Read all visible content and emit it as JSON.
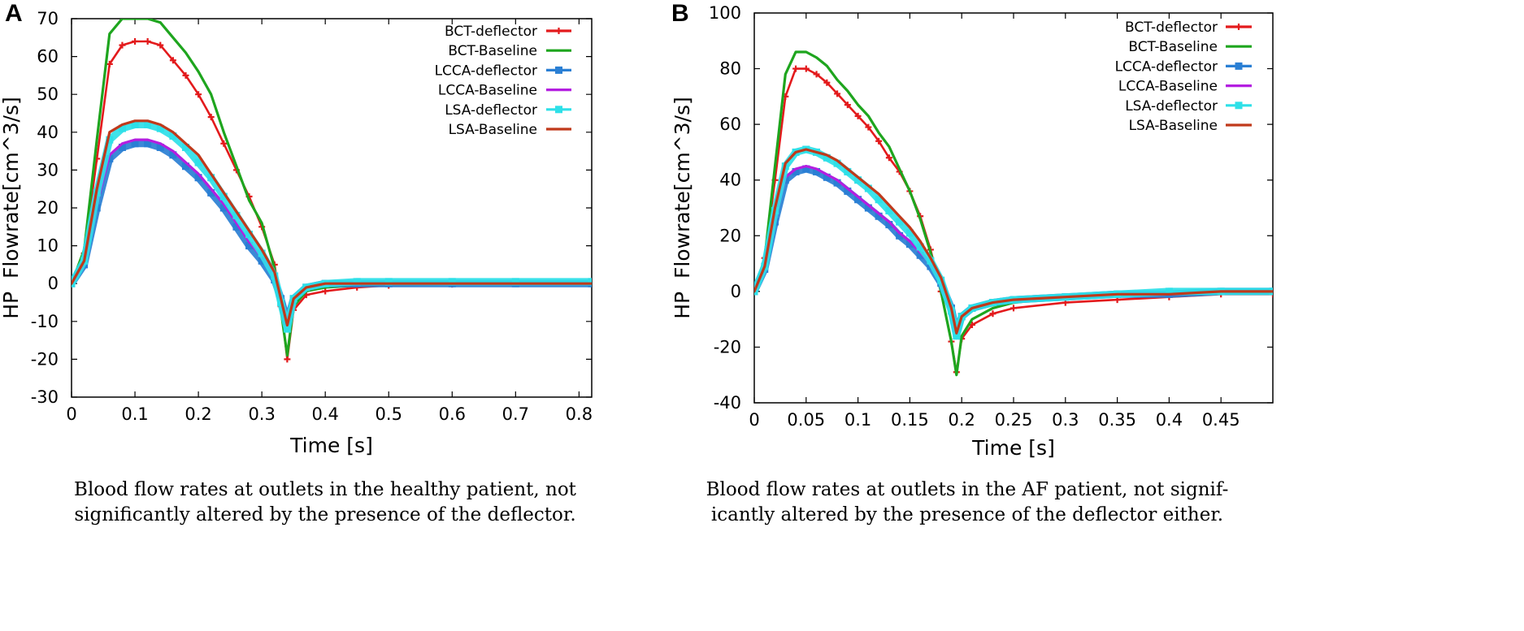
{
  "chart_data": [
    {
      "type": "line",
      "panel": "A",
      "title": "",
      "xlabel": "Time [s]",
      "ylabel": "HP  Flowrate[cm^3/s]",
      "xlim": [
        0,
        0.82
      ],
      "ylim": [
        -30,
        70
      ],
      "xticks": [
        0,
        0.1,
        0.2,
        0.3,
        0.4,
        0.5,
        0.6,
        0.7,
        0.8
      ],
      "xtick_labels": [
        "0",
        "0.1",
        "0.2",
        "0.3",
        "0.4",
        "0.5",
        "0.6",
        "0.7",
        "0.8"
      ],
      "yticks": [
        -30,
        -20,
        -10,
        0,
        10,
        20,
        30,
        40,
        50,
        60,
        70
      ],
      "ytick_labels": [
        "-30",
        "-20",
        "-10",
        "0",
        "10",
        "20",
        "30",
        "40",
        "50",
        "60",
        "70"
      ],
      "legend_position": "top-right",
      "series": [
        {
          "name": "BCT-deflector",
          "color": "#e31a1c",
          "marker": "plus",
          "x": [
            0,
            0.02,
            0.04,
            0.06,
            0.08,
            0.1,
            0.12,
            0.14,
            0.16,
            0.18,
            0.2,
            0.22,
            0.24,
            0.26,
            0.28,
            0.3,
            0.32,
            0.33,
            0.34,
            0.35,
            0.37,
            0.4,
            0.45,
            0.5,
            0.6,
            0.7,
            0.82
          ],
          "y": [
            0,
            8,
            33,
            58,
            63,
            64,
            64,
            63,
            59,
            55,
            50,
            44,
            37,
            30,
            23,
            15,
            5,
            -6,
            -20,
            -7,
            -3,
            -2,
            -1,
            -0.5,
            -0.2,
            0,
            0
          ]
        },
        {
          "name": "BCT-Baseline",
          "color": "#1ea51e",
          "marker": "none",
          "x": [
            0,
            0.02,
            0.04,
            0.06,
            0.08,
            0.1,
            0.12,
            0.14,
            0.16,
            0.18,
            0.2,
            0.22,
            0.24,
            0.26,
            0.28,
            0.3,
            0.32,
            0.33,
            0.34,
            0.35,
            0.37,
            0.4,
            0.45,
            0.5,
            0.6,
            0.7,
            0.82
          ],
          "y": [
            0,
            9,
            38,
            66,
            70,
            70,
            70,
            69,
            65,
            61,
            56,
            50,
            40,
            31,
            22,
            16,
            4,
            -7,
            -19,
            -6,
            -2,
            -1,
            -0.5,
            0,
            0,
            0,
            0
          ]
        },
        {
          "name": "LCCA-deflector",
          "color": "#2a7fd4",
          "marker": "square",
          "x": [
            0,
            0.02,
            0.04,
            0.06,
            0.08,
            0.1,
            0.12,
            0.14,
            0.16,
            0.18,
            0.2,
            0.22,
            0.24,
            0.26,
            0.28,
            0.3,
            0.32,
            0.33,
            0.34,
            0.35,
            0.37,
            0.4,
            0.45,
            0.5,
            0.6,
            0.7,
            0.82
          ],
          "y": [
            0,
            5,
            20,
            33,
            36,
            37,
            37,
            36,
            34,
            31,
            28,
            24,
            20,
            15,
            10,
            6,
            1,
            -4,
            -10,
            -4,
            -1,
            0,
            0,
            0,
            0,
            0,
            0
          ]
        },
        {
          "name": "LCCA-Baseline",
          "color": "#b41ee0",
          "marker": "none",
          "x": [
            0,
            0.02,
            0.04,
            0.06,
            0.08,
            0.1,
            0.12,
            0.14,
            0.16,
            0.18,
            0.2,
            0.22,
            0.24,
            0.26,
            0.28,
            0.3,
            0.32,
            0.33,
            0.34,
            0.35,
            0.37,
            0.4,
            0.45,
            0.5,
            0.6,
            0.7,
            0.82
          ],
          "y": [
            0,
            5,
            21,
            34,
            37,
            38,
            38,
            37,
            35,
            32,
            29,
            25,
            21,
            16,
            11,
            7,
            2,
            -3,
            -10,
            -4,
            -1,
            0,
            0,
            0,
            0,
            0,
            0
          ]
        },
        {
          "name": "LSA-deflector",
          "color": "#2ee0e8",
          "marker": "square",
          "x": [
            0,
            0.02,
            0.04,
            0.06,
            0.08,
            0.1,
            0.12,
            0.14,
            0.16,
            0.18,
            0.2,
            0.22,
            0.24,
            0.26,
            0.28,
            0.3,
            0.32,
            0.33,
            0.34,
            0.35,
            0.37,
            0.4,
            0.45,
            0.5,
            0.6,
            0.7,
            0.82
          ],
          "y": [
            0,
            6,
            24,
            38,
            41,
            42,
            42,
            41,
            39,
            36,
            32,
            28,
            23,
            18,
            13,
            8,
            2,
            -5,
            -12,
            -4,
            -1,
            0,
            0.5,
            0.5,
            0.5,
            0.5,
            0.5
          ]
        },
        {
          "name": "LSA-Baseline",
          "color": "#c0391b",
          "marker": "none",
          "x": [
            0,
            0.02,
            0.04,
            0.06,
            0.08,
            0.1,
            0.12,
            0.14,
            0.16,
            0.18,
            0.2,
            0.22,
            0.24,
            0.26,
            0.28,
            0.3,
            0.32,
            0.33,
            0.34,
            0.35,
            0.37,
            0.4,
            0.45,
            0.5,
            0.6,
            0.7,
            0.82
          ],
          "y": [
            0,
            6,
            25,
            40,
            42,
            43,
            43,
            42,
            40,
            37,
            34,
            29,
            24,
            19,
            14,
            9,
            3,
            -4,
            -11,
            -4,
            -1,
            0,
            0,
            0,
            0,
            0,
            0
          ]
        }
      ]
    },
    {
      "type": "line",
      "panel": "B",
      "title": "",
      "xlabel": "Time [s]",
      "ylabel": "HP  Flowrate[cm^3/s]",
      "xlim": [
        0,
        0.5
      ],
      "ylim": [
        -40,
        100
      ],
      "xticks": [
        0,
        0.05,
        0.1,
        0.15,
        0.2,
        0.25,
        0.3,
        0.35,
        0.4,
        0.45
      ],
      "xtick_labels": [
        "0",
        "0.05",
        "0.1",
        "0.15",
        "0.2",
        "0.25",
        "0.3",
        "0.35",
        "0.4",
        "0.45"
      ],
      "yticks": [
        -40,
        -20,
        0,
        20,
        40,
        60,
        80,
        100
      ],
      "ytick_labels": [
        "-40",
        "-20",
        "0",
        "20",
        "40",
        "60",
        "80",
        "100"
      ],
      "legend_position": "top-right",
      "series": [
        {
          "name": "BCT-deflector",
          "color": "#e31a1c",
          "marker": "plus",
          "x": [
            0,
            0.01,
            0.02,
            0.03,
            0.04,
            0.05,
            0.06,
            0.07,
            0.08,
            0.09,
            0.1,
            0.11,
            0.12,
            0.13,
            0.14,
            0.15,
            0.16,
            0.17,
            0.18,
            0.19,
            0.195,
            0.2,
            0.21,
            0.23,
            0.25,
            0.3,
            0.35,
            0.4,
            0.45,
            0.5
          ],
          "y": [
            0,
            12,
            40,
            70,
            80,
            80,
            78,
            75,
            71,
            67,
            63,
            59,
            54,
            48,
            43,
            36,
            27,
            15,
            0,
            -18,
            -29,
            -17,
            -12,
            -8,
            -6,
            -4,
            -3,
            -2,
            -1,
            -1
          ]
        },
        {
          "name": "BCT-Baseline",
          "color": "#1ea51e",
          "marker": "none",
          "x": [
            0,
            0.01,
            0.02,
            0.03,
            0.04,
            0.05,
            0.06,
            0.07,
            0.08,
            0.09,
            0.1,
            0.11,
            0.12,
            0.13,
            0.14,
            0.15,
            0.16,
            0.17,
            0.18,
            0.19,
            0.195,
            0.2,
            0.21,
            0.23,
            0.25,
            0.3,
            0.35,
            0.4,
            0.45,
            0.5
          ],
          "y": [
            0,
            12,
            45,
            78,
            86,
            86,
            84,
            81,
            76,
            72,
            67,
            63,
            57,
            52,
            44,
            36,
            26,
            14,
            0,
            -18,
            -30,
            -16,
            -10,
            -6,
            -4,
            -2,
            -1,
            -1,
            0,
            0
          ]
        },
        {
          "name": "LCCA-deflector",
          "color": "#2a7fd4",
          "marker": "square",
          "x": [
            0,
            0.01,
            0.02,
            0.03,
            0.04,
            0.05,
            0.06,
            0.07,
            0.08,
            0.09,
            0.1,
            0.11,
            0.12,
            0.13,
            0.14,
            0.15,
            0.16,
            0.17,
            0.18,
            0.19,
            0.195,
            0.2,
            0.21,
            0.23,
            0.25,
            0.3,
            0.35,
            0.4,
            0.45,
            0.5
          ],
          "y": [
            0,
            8,
            25,
            40,
            43,
            44,
            43,
            41,
            39,
            36,
            33,
            30,
            27,
            24,
            20,
            17,
            13,
            9,
            3,
            -6,
            -15,
            -9,
            -6,
            -4,
            -3,
            -2,
            -1,
            -1,
            0,
            0
          ]
        },
        {
          "name": "LCCA-Baseline",
          "color": "#b41ee0",
          "marker": "none",
          "x": [
            0,
            0.01,
            0.02,
            0.03,
            0.04,
            0.05,
            0.06,
            0.07,
            0.08,
            0.09,
            0.1,
            0.11,
            0.12,
            0.13,
            0.14,
            0.15,
            0.16,
            0.17,
            0.18,
            0.19,
            0.195,
            0.2,
            0.21,
            0.23,
            0.25,
            0.3,
            0.35,
            0.4,
            0.45,
            0.5
          ],
          "y": [
            0,
            8,
            26,
            41,
            44,
            45,
            44,
            42,
            40,
            37,
            34,
            31,
            28,
            25,
            21,
            18,
            14,
            10,
            4,
            -6,
            -15,
            -9,
            -6,
            -4,
            -3,
            -2,
            -1,
            -1,
            0,
            0
          ]
        },
        {
          "name": "LSA-deflector",
          "color": "#2ee0e8",
          "marker": "square",
          "x": [
            0,
            0.01,
            0.02,
            0.03,
            0.04,
            0.05,
            0.06,
            0.07,
            0.08,
            0.09,
            0.1,
            0.11,
            0.12,
            0.13,
            0.14,
            0.15,
            0.16,
            0.17,
            0.18,
            0.19,
            0.195,
            0.2,
            0.21,
            0.23,
            0.25,
            0.3,
            0.35,
            0.4,
            0.45,
            0.5
          ],
          "y": [
            0,
            9,
            29,
            45,
            50,
            51,
            50,
            48,
            46,
            43,
            40,
            37,
            33,
            29,
            25,
            21,
            16,
            11,
            4,
            -7,
            -16,
            -9,
            -6,
            -4,
            -3,
            -2,
            -1,
            0,
            0,
            0
          ]
        },
        {
          "name": "LSA-Baseline",
          "color": "#c0391b",
          "marker": "none",
          "x": [
            0,
            0.01,
            0.02,
            0.03,
            0.04,
            0.05,
            0.06,
            0.07,
            0.08,
            0.09,
            0.1,
            0.11,
            0.12,
            0.13,
            0.14,
            0.15,
            0.16,
            0.17,
            0.18,
            0.19,
            0.195,
            0.2,
            0.21,
            0.23,
            0.25,
            0.3,
            0.35,
            0.4,
            0.45,
            0.5
          ],
          "y": [
            0,
            9,
            30,
            46,
            50,
            51,
            50,
            49,
            47,
            44,
            41,
            38,
            35,
            31,
            27,
            23,
            18,
            12,
            5,
            -6,
            -15,
            -9,
            -6,
            -4,
            -3,
            -2,
            -1,
            -1,
            0,
            0
          ]
        }
      ]
    }
  ],
  "captions": {
    "a": {
      "line1": "Blood flow rates at outlets in the healthy patient, not",
      "line2": "significantly altered by the presence of the deflector."
    },
    "b": {
      "line1": "Blood flow rates at outlets in the AF patient, not signif-",
      "line2": "icantly altered by the presence of the deflector either."
    }
  }
}
